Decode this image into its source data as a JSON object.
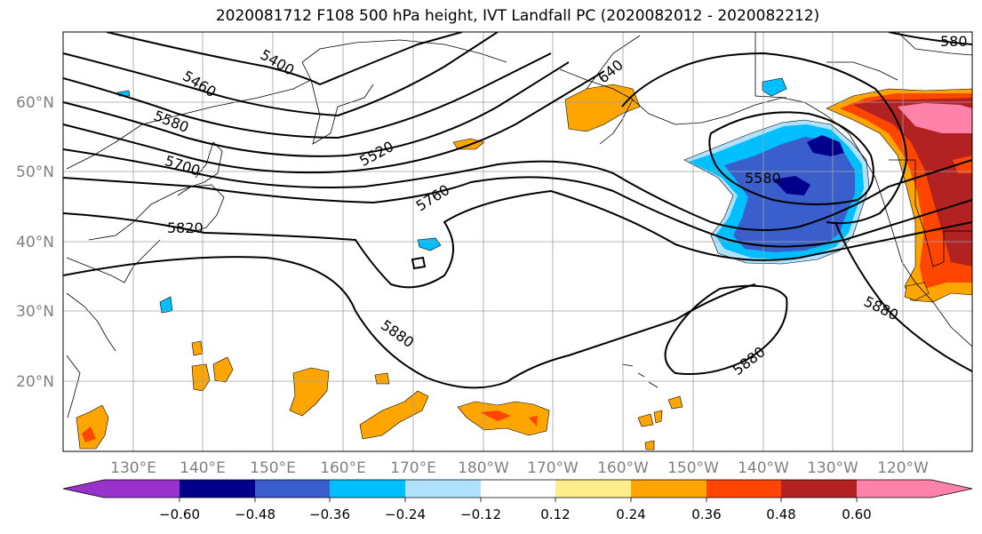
{
  "title": "2020081712 F108 500 hPa height, IVT Landfall PC (2020082012 - 2020082212)",
  "latitude_labels": [
    "60°N",
    "50°N",
    "40°N",
    "30°N",
    "20°N"
  ],
  "longitude_labels": [
    "130°E",
    "140°E",
    "150°E",
    "160°E",
    "170°E",
    "180°W",
    "170°W",
    "160°W",
    "150°W",
    "140°W",
    "130°W",
    "120°W"
  ],
  "contour_labels": [
    "5400",
    "5460",
    "5580",
    "5520",
    "5700",
    "5760",
    "5820",
    "5880",
    "5580",
    "5880",
    "5880",
    "580",
    "640"
  ],
  "colorbar": {
    "ticks": [
      "−0.60",
      "−0.48",
      "−0.36",
      "−0.24",
      "−0.12",
      "0.12",
      "0.24",
      "0.36",
      "0.48",
      "0.60"
    ],
    "colors": [
      "#9932cc",
      "#00008b",
      "#3a5fcd",
      "#00bfff",
      "#b0e2ff",
      "#ffffff",
      "#ffec8b",
      "#ffa500",
      "#ff4500",
      "#b22222",
      "#ff82ab"
    ]
  }
}
